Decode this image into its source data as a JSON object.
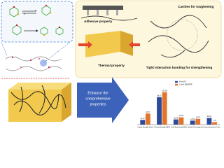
{
  "panel": {
    "adhesive": "Adhesive property",
    "thermal": "Thermal property",
    "cavities": "Cavities for toughening",
    "bonding": "Tight interaction bonding for strengthening"
  },
  "arrow": {
    "line1": "Enhance the",
    "line2": "comprehensive",
    "line3": "properties"
  },
  "chart_data": {
    "type": "bar",
    "categories": [
      "Impact Strength (kJ/m²)",
      "Flexural Strength (MPa)",
      "Tensile Shear Strength (MPa)",
      "Residue Percentage (%)",
      "Maximum Decomposition rate (%/min)"
    ],
    "series": [
      {
        "name": "Pure EP",
        "color": "#2b4a9b",
        "values": [
          14.67,
          86.07,
          16.25,
          12.56,
          20.81
        ]
      },
      {
        "name": "2 wt% DBOEPP",
        "color": "#e2742c",
        "values": [
          34.77,
          101.69,
          22.86,
          18.07,
          7.79
        ]
      }
    ],
    "ylim": [
      0,
      110
    ]
  }
}
